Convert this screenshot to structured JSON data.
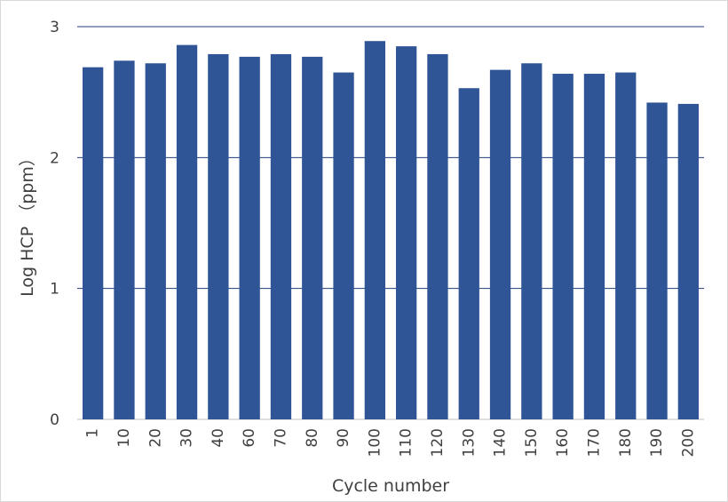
{
  "chart_data": {
    "type": "bar",
    "title": "",
    "xlabel": "Cycle number",
    "ylabel": "Log HCP （ppm）",
    "categories": [
      "1",
      "10",
      "20",
      "30",
      "40",
      "60",
      "70",
      "80",
      "90",
      "100",
      "110",
      "120",
      "130",
      "140",
      "150",
      "160",
      "170",
      "180",
      "190",
      "200"
    ],
    "series": [
      {
        "values": [
          2.69,
          2.74,
          2.72,
          2.86,
          2.79,
          2.77,
          2.79,
          2.77,
          2.65,
          2.89,
          2.85,
          2.79,
          2.53,
          2.67,
          2.72,
          2.64,
          2.64,
          2.65,
          2.42,
          2.41
        ]
      }
    ],
    "ylim": [
      0,
      3
    ],
    "yticks": [
      "0",
      "1",
      "2",
      "3"
    ],
    "grid": true,
    "legend": "none",
    "bar_color": "#2f5597",
    "grid_color": "#1f3c78"
  }
}
